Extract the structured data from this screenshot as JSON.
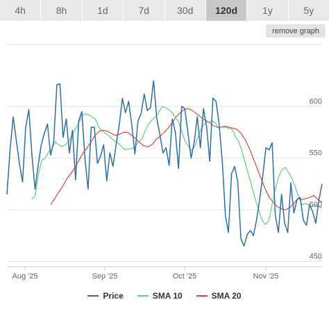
{
  "range_tabs": [
    {
      "label": "4h",
      "active": false
    },
    {
      "label": "8h",
      "active": false
    },
    {
      "label": "1d",
      "active": false
    },
    {
      "label": "7d",
      "active": false
    },
    {
      "label": "30d",
      "active": false
    },
    {
      "label": "120d",
      "active": true
    },
    {
      "label": "1y",
      "active": false
    },
    {
      "label": "5y",
      "active": false
    }
  ],
  "remove_graph_label": "remove graph",
  "chart_data": {
    "type": "line",
    "x_tick_labels": [
      "Aug '25",
      "Sep '25",
      "Oct '25",
      "Nov '25"
    ],
    "y_ticks": [
      450,
      500,
      550,
      600
    ],
    "ylim": [
      445,
      660
    ],
    "grid": "horizontal",
    "legend_position": "bottom-center",
    "series": [
      {
        "name": "Price",
        "color": "#2b6fa8",
        "values": [
          515,
          558,
          590,
          567,
          545,
          527,
          580,
          597,
          553,
          520,
          543,
          563,
          574,
          583,
          553,
          566,
          621,
          622,
          570,
          588,
          555,
          577,
          529,
          586,
          595,
          550,
          520,
          580,
          580,
          545,
          552,
          563,
          528,
          555,
          542,
          563,
          582,
          608,
          594,
          605,
          583,
          554,
          586,
          593,
          612,
          596,
          599,
          625,
          589,
          573,
          555,
          560,
          543,
          588,
          575,
          540,
          600,
          598,
          575,
          550,
          565,
          590,
          560,
          598,
          580,
          547,
          608,
          605,
          583,
          547,
          495,
          478,
          535,
          542,
          527,
          472,
          465,
          476,
          480,
          475,
          490,
          510,
          533,
          560,
          558,
          565,
          495,
          478,
          515,
          487,
          478,
          526,
          497,
          510,
          512,
          490,
          485,
          505,
          498,
          487,
          510,
          525
        ]
      },
      {
        "name": "SMA 10",
        "values": [
          510,
          514,
          535,
          548,
          550,
          556,
          559,
          566,
          563,
          561,
          563,
          566,
          572,
          578,
          584,
          590,
          593,
          592,
          590,
          588,
          580,
          577,
          574,
          572,
          569,
          566,
          564,
          561,
          558,
          559,
          559,
          561,
          566,
          568,
          577,
          583,
          587,
          590,
          594,
          600,
          599,
          597,
          594,
          590,
          585,
          575,
          566,
          561,
          557,
          563,
          572,
          580,
          584,
          585,
          586,
          584,
          579,
          580,
          580,
          579,
          578,
          571,
          566,
          557,
          545,
          533,
          522,
          510,
          500,
          490,
          486,
          489,
          505,
          520,
          532,
          539,
          541,
          536,
          530,
          522,
          512,
          505,
          506,
          505,
          503,
          505,
          503,
          502
        ]
      },
      {
        "name": "SMA 20",
        "color": "#e0463a",
        "values": [
          505,
          511,
          517,
          523,
          530,
          535,
          541,
          548,
          555,
          560,
          566,
          572,
          576,
          577,
          576,
          574,
          572,
          573,
          575,
          575,
          572,
          569,
          565,
          562,
          561,
          563,
          568,
          571,
          575,
          579,
          584,
          590,
          594,
          597,
          598,
          596,
          593,
          590,
          587,
          585,
          582,
          580,
          580,
          581,
          580,
          579,
          578,
          574,
          568,
          560,
          550,
          540,
          530,
          520,
          512,
          507,
          503,
          501,
          500,
          502,
          506,
          511,
          510,
          511,
          512,
          514,
          510,
          507
        ]
      }
    ]
  }
}
